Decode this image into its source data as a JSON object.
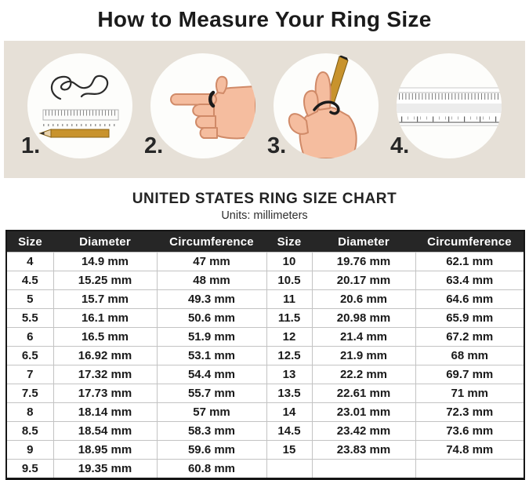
{
  "page_title": "How to Measure Your Ring Size",
  "steps": [
    {
      "number": "1.",
      "icon": "string-ruler-pencil-icon"
    },
    {
      "number": "2.",
      "icon": "pointing-hand-ring-icon"
    },
    {
      "number": "3.",
      "icon": "string-wrapped-finger-icon"
    },
    {
      "number": "4.",
      "icon": "ruler-icon"
    }
  ],
  "section": {
    "heading": "UNITED STATES RING SIZE CHART",
    "units_label": "Units: millimeters"
  },
  "chart_data": {
    "type": "table",
    "title": "UNITED STATES RING SIZE CHART",
    "units": "millimeters",
    "columns": [
      "Size",
      "Diameter",
      "Circumference",
      "Size",
      "Diameter",
      "Circumference"
    ],
    "rows": [
      [
        "4",
        "14.9 mm",
        "47 mm",
        "10",
        "19.76 mm",
        "62.1 mm"
      ],
      [
        "4.5",
        "15.25 mm",
        "48 mm",
        "10.5",
        "20.17 mm",
        "63.4 mm"
      ],
      [
        "5",
        "15.7 mm",
        "49.3 mm",
        "11",
        "20.6 mm",
        "64.6 mm"
      ],
      [
        "5.5",
        "16.1 mm",
        "50.6 mm",
        "11.5",
        "20.98 mm",
        "65.9 mm"
      ],
      [
        "6",
        "16.5 mm",
        "51.9 mm",
        "12",
        "21.4 mm",
        "67.2 mm"
      ],
      [
        "6.5",
        "16.92 mm",
        "53.1 mm",
        "12.5",
        "21.9 mm",
        "68 mm"
      ],
      [
        "7",
        "17.32 mm",
        "54.4 mm",
        "13",
        "22.2 mm",
        "69.7 mm"
      ],
      [
        "7.5",
        "17.73 mm",
        "55.7 mm",
        "13.5",
        "22.61 mm",
        "71 mm"
      ],
      [
        "8",
        "18.14 mm",
        "57 mm",
        "14",
        "23.01 mm",
        "72.3 mm"
      ],
      [
        "8.5",
        "18.54 mm",
        "58.3 mm",
        "14.5",
        "23.42 mm",
        "73.6 mm"
      ],
      [
        "9",
        "18.95 mm",
        "59.6 mm",
        "15",
        "23.83 mm",
        "74.8 mm"
      ],
      [
        "9.5",
        "19.35 mm",
        "60.8 mm",
        "",
        "",
        ""
      ]
    ]
  },
  "colors": {
    "band_bg": "#e6e0d7",
    "header_bg": "#262626",
    "header_text": "#ffffff",
    "body_text": "#1c1c1c",
    "pencil": "#c8932d",
    "skin": "#f5bd9f",
    "string": "#1b1b1b"
  }
}
